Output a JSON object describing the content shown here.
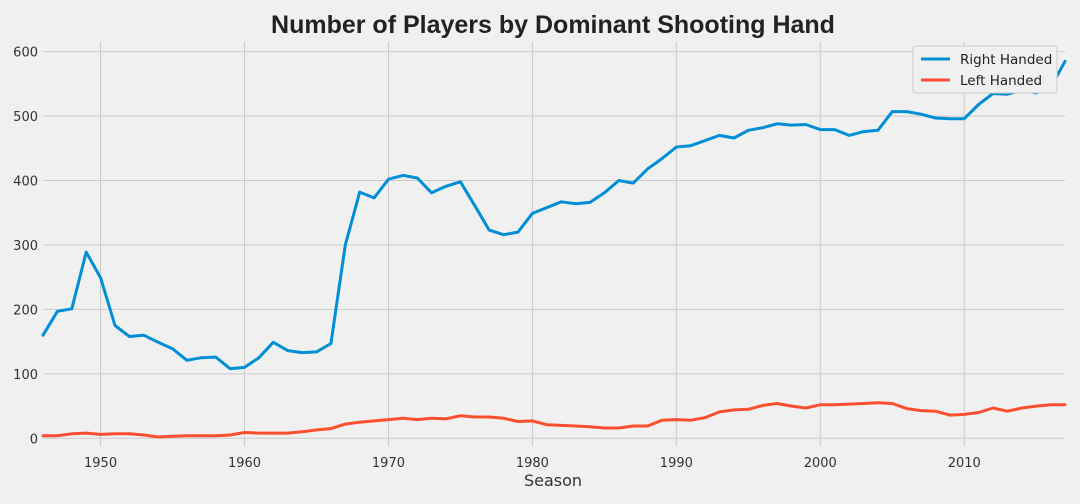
{
  "chart_data": {
    "type": "line",
    "title": "Number of Players by Dominant Shooting Hand",
    "xlabel": "Season",
    "ylabel": "",
    "xlim": [
      1946,
      2017
    ],
    "ylim": [
      -12,
      615
    ],
    "xticks": [
      1950,
      1960,
      1970,
      1980,
      1990,
      2000,
      2010
    ],
    "yticks": [
      0,
      100,
      200,
      300,
      400,
      500,
      600
    ],
    "grid": true,
    "legend_position": "top-right",
    "x": [
      1946,
      1947,
      1948,
      1949,
      1950,
      1951,
      1952,
      1953,
      1954,
      1955,
      1956,
      1957,
      1958,
      1959,
      1960,
      1961,
      1962,
      1963,
      1964,
      1965,
      1966,
      1967,
      1968,
      1969,
      1970,
      1971,
      1972,
      1973,
      1974,
      1975,
      1976,
      1977,
      1978,
      1979,
      1980,
      1981,
      1982,
      1983,
      1984,
      1985,
      1986,
      1987,
      1988,
      1989,
      1990,
      1991,
      1992,
      1993,
      1994,
      1995,
      1996,
      1997,
      1998,
      1999,
      2000,
      2001,
      2002,
      2003,
      2004,
      2005,
      2006,
      2007,
      2008,
      2009,
      2010,
      2011,
      2012,
      2013,
      2014,
      2015,
      2016,
      2017
    ],
    "series": [
      {
        "name": "Right Handed",
        "color": "#008fd5",
        "values": [
          160,
          197,
          201,
          289,
          249,
          175,
          158,
          160,
          149,
          139,
          121,
          125,
          126,
          108,
          110,
          125,
          149,
          136,
          133,
          134,
          147,
          300,
          382,
          373,
          402,
          408,
          404,
          381,
          391,
          398,
          361,
          323,
          316,
          320,
          349,
          358,
          367,
          364,
          366,
          381,
          400,
          396,
          418,
          434,
          452,
          454,
          462,
          470,
          466,
          478,
          482,
          488,
          486,
          487,
          479,
          479,
          470,
          476,
          478,
          507,
          507,
          503,
          497,
          496,
          496,
          518,
          535,
          534,
          540,
          536,
          544,
          585
        ]
      },
      {
        "name": "Left Handed",
        "color": "#fc4f30",
        "values": [
          4,
          4,
          7,
          8,
          6,
          7,
          7,
          5,
          2,
          3,
          4,
          4,
          4,
          5,
          9,
          8,
          8,
          8,
          10,
          13,
          15,
          22,
          25,
          27,
          29,
          31,
          29,
          31,
          30,
          35,
          33,
          33,
          31,
          26,
          27,
          21,
          20,
          19,
          18,
          16,
          16,
          19,
          19,
          28,
          29,
          28,
          32,
          41,
          44,
          45,
          51,
          54,
          50,
          47,
          52,
          52,
          53,
          54,
          55,
          54,
          46,
          43,
          42,
          36,
          37,
          40,
          47,
          42,
          47,
          50,
          52,
          52
        ]
      }
    ]
  }
}
